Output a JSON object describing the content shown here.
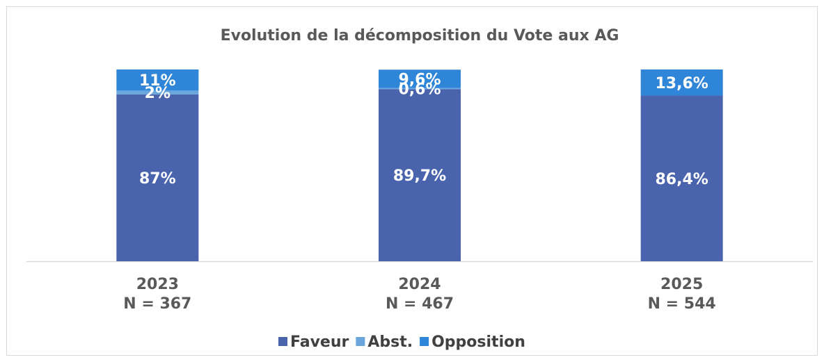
{
  "chart_data": {
    "type": "stacked_bar",
    "title": "Evolution  de la décomposition du Vote aux AG",
    "categories": [
      "2023",
      "2024",
      "2025"
    ],
    "category_sublabels": [
      "N = 367",
      "N = 467",
      "N = 544"
    ],
    "ylim": [
      0,
      100
    ],
    "series": [
      {
        "name": "Faveur",
        "color": "#4a63ad",
        "values": [
          87,
          89.7,
          86.4
        ],
        "value_labels": [
          "87%",
          "89,7%",
          "86,4%"
        ]
      },
      {
        "name": "Abst.",
        "color": "#6aa5dc",
        "values": [
          2,
          0.6,
          null
        ],
        "value_labels": [
          "2%",
          "0,6%",
          null
        ]
      },
      {
        "name": "Opposition",
        "color": "#2f86d8",
        "values": [
          11,
          9.6,
          13.6
        ],
        "value_labels": [
          "11%",
          "9,6%",
          "13,6%"
        ]
      }
    ]
  }
}
